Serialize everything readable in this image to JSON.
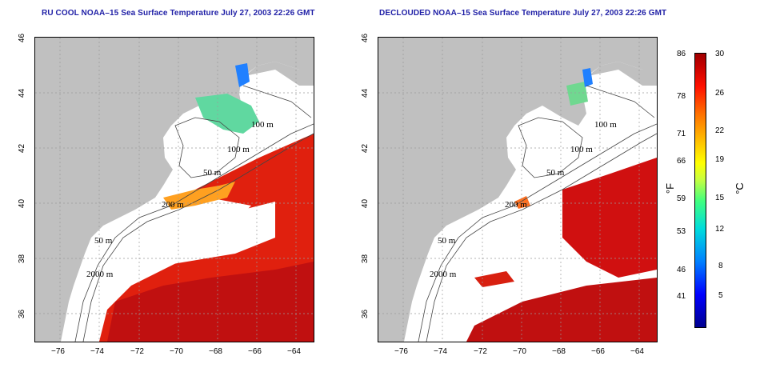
{
  "panels": [
    {
      "title": "RU COOL NOAA–15 Sea Surface Temperature July 27, 2003 22:26 GMT"
    },
    {
      "title": "DECLOUDED NOAA–15 Sea Surface Temperature July 27, 2003 22:26 GMT"
    }
  ],
  "map": {
    "lat_ticks": [
      "46",
      "44",
      "42",
      "40",
      "38",
      "36"
    ],
    "lon_ticks": [
      "−76",
      "−74",
      "−72",
      "−70",
      "−68",
      "−66",
      "−64"
    ],
    "contour_labels": [
      "100 m",
      "100 m",
      "50 m",
      "200 m",
      "50 m",
      "2000 m"
    ],
    "land_color": "#c0c0c0",
    "grid": true
  },
  "colorbar": {
    "fahrenheit_ticks": [
      "86",
      "78",
      "71",
      "66",
      "59",
      "53",
      "46",
      "41"
    ],
    "celsius_ticks": [
      "30",
      "26",
      "22",
      "19",
      "15",
      "12",
      "8",
      "5"
    ],
    "f_unit": "°F",
    "c_unit": "°C",
    "colors": [
      "#00008f",
      "#0000ff",
      "#0080ff",
      "#00dcdc",
      "#40ff80",
      "#c8ff40",
      "#ffff00",
      "#ffc000",
      "#ff7000",
      "#ff1000",
      "#a00000"
    ]
  }
}
